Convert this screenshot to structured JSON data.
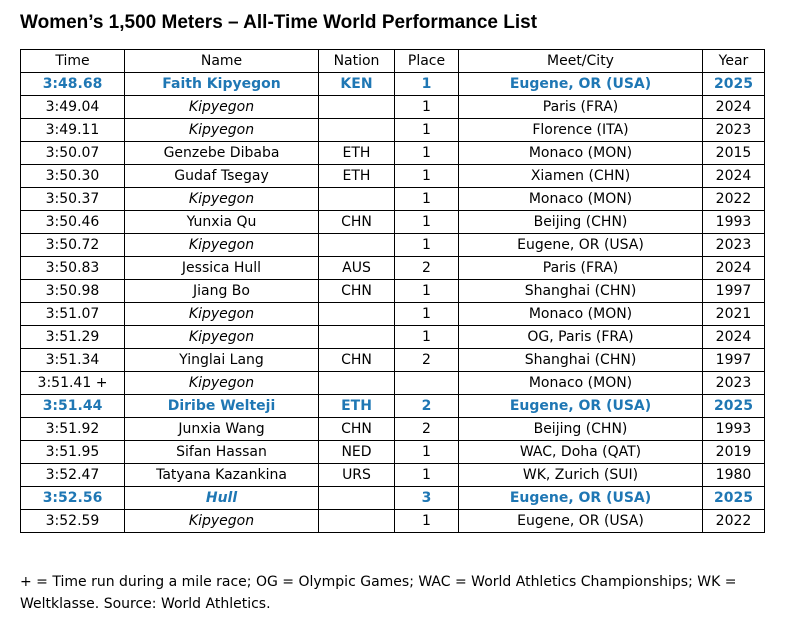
{
  "title": "Women’s 1,500 Meters – All-Time World Performance List",
  "accent_color": "#1f77b4",
  "columns": {
    "time": "Time",
    "name": "Name",
    "nation": "Nation",
    "place": "Place",
    "meet": "Meet/City",
    "year": "Year"
  },
  "rows": [
    {
      "time": "3:48.68",
      "name": "Faith Kipyegon",
      "nation": "KEN",
      "place": "1",
      "meet": "Eugene, OR (USA)",
      "year": "2025",
      "highlight": true,
      "italic_name": false
    },
    {
      "time": "3:49.04",
      "name": "Kipyegon",
      "nation": "",
      "place": "1",
      "meet": "Paris (FRA)",
      "year": "2024",
      "highlight": false,
      "italic_name": true
    },
    {
      "time": "3:49.11",
      "name": "Kipyegon",
      "nation": "",
      "place": "1",
      "meet": "Florence (ITA)",
      "year": "2023",
      "highlight": false,
      "italic_name": true
    },
    {
      "time": "3:50.07",
      "name": "Genzebe Dibaba",
      "nation": "ETH",
      "place": "1",
      "meet": "Monaco (MON)",
      "year": "2015",
      "highlight": false,
      "italic_name": false
    },
    {
      "time": "3:50.30",
      "name": "Gudaf Tsegay",
      "nation": "ETH",
      "place": "1",
      "meet": "Xiamen (CHN)",
      "year": "2024",
      "highlight": false,
      "italic_name": false
    },
    {
      "time": "3:50.37",
      "name": "Kipyegon",
      "nation": "",
      "place": "1",
      "meet": "Monaco (MON)",
      "year": "2022",
      "highlight": false,
      "italic_name": true
    },
    {
      "time": "3:50.46",
      "name": "Yunxia Qu",
      "nation": "CHN",
      "place": "1",
      "meet": "Beijing (CHN)",
      "year": "1993",
      "highlight": false,
      "italic_name": false
    },
    {
      "time": "3:50.72",
      "name": "Kipyegon",
      "nation": "",
      "place": "1",
      "meet": "Eugene, OR (USA)",
      "year": "2023",
      "highlight": false,
      "italic_name": true
    },
    {
      "time": "3:50.83",
      "name": "Jessica Hull",
      "nation": "AUS",
      "place": "2",
      "meet": "Paris (FRA)",
      "year": "2024",
      "highlight": false,
      "italic_name": false
    },
    {
      "time": "3:50.98",
      "name": "Jiang Bo",
      "nation": "CHN",
      "place": "1",
      "meet": "Shanghai (CHN)",
      "year": "1997",
      "highlight": false,
      "italic_name": false
    },
    {
      "time": "3:51.07",
      "name": "Kipyegon",
      "nation": "",
      "place": "1",
      "meet": "Monaco (MON)",
      "year": "2021",
      "highlight": false,
      "italic_name": true
    },
    {
      "time": "3:51.29",
      "name": "Kipyegon",
      "nation": "",
      "place": "1",
      "meet": "OG, Paris (FRA)",
      "year": "2024",
      "highlight": false,
      "italic_name": true
    },
    {
      "time": "3:51.34",
      "name": "Yinglai Lang",
      "nation": "CHN",
      "place": "2",
      "meet": "Shanghai (CHN)",
      "year": "1997",
      "highlight": false,
      "italic_name": false
    },
    {
      "time": "3:51.41 +",
      "name": "Kipyegon",
      "nation": "",
      "place": "",
      "meet": "Monaco (MON)",
      "year": "2023",
      "highlight": false,
      "italic_name": true
    },
    {
      "time": "3:51.44",
      "name": "Diribe Welteji",
      "nation": "ETH",
      "place": "2",
      "meet": "Eugene, OR (USA)",
      "year": "2025",
      "highlight": true,
      "italic_name": false
    },
    {
      "time": "3:51.92",
      "name": "Junxia Wang",
      "nation": "CHN",
      "place": "2",
      "meet": "Beijing (CHN)",
      "year": "1993",
      "highlight": false,
      "italic_name": false
    },
    {
      "time": "3:51.95",
      "name": "Sifan Hassan",
      "nation": "NED",
      "place": "1",
      "meet": "WAC, Doha (QAT)",
      "year": "2019",
      "highlight": false,
      "italic_name": false
    },
    {
      "time": "3:52.47",
      "name": "Tatyana Kazankina",
      "nation": "URS",
      "place": "1",
      "meet": "WK, Zurich (SUI)",
      "year": "1980",
      "highlight": false,
      "italic_name": false
    },
    {
      "time": "3:52.56",
      "name": "Hull",
      "nation": "",
      "place": "3",
      "meet": "Eugene, OR (USA)",
      "year": "2025",
      "highlight": true,
      "italic_name": true
    },
    {
      "time": "3:52.59",
      "name": "Kipyegon",
      "nation": "",
      "place": "1",
      "meet": "Eugene, OR (USA)",
      "year": "2022",
      "highlight": false,
      "italic_name": true
    }
  ],
  "footnote": "+ = Time run during a mile race; OG = Olympic Games; WAC = World Athletics Championships; WK = Weltklasse. Source: World Athletics."
}
